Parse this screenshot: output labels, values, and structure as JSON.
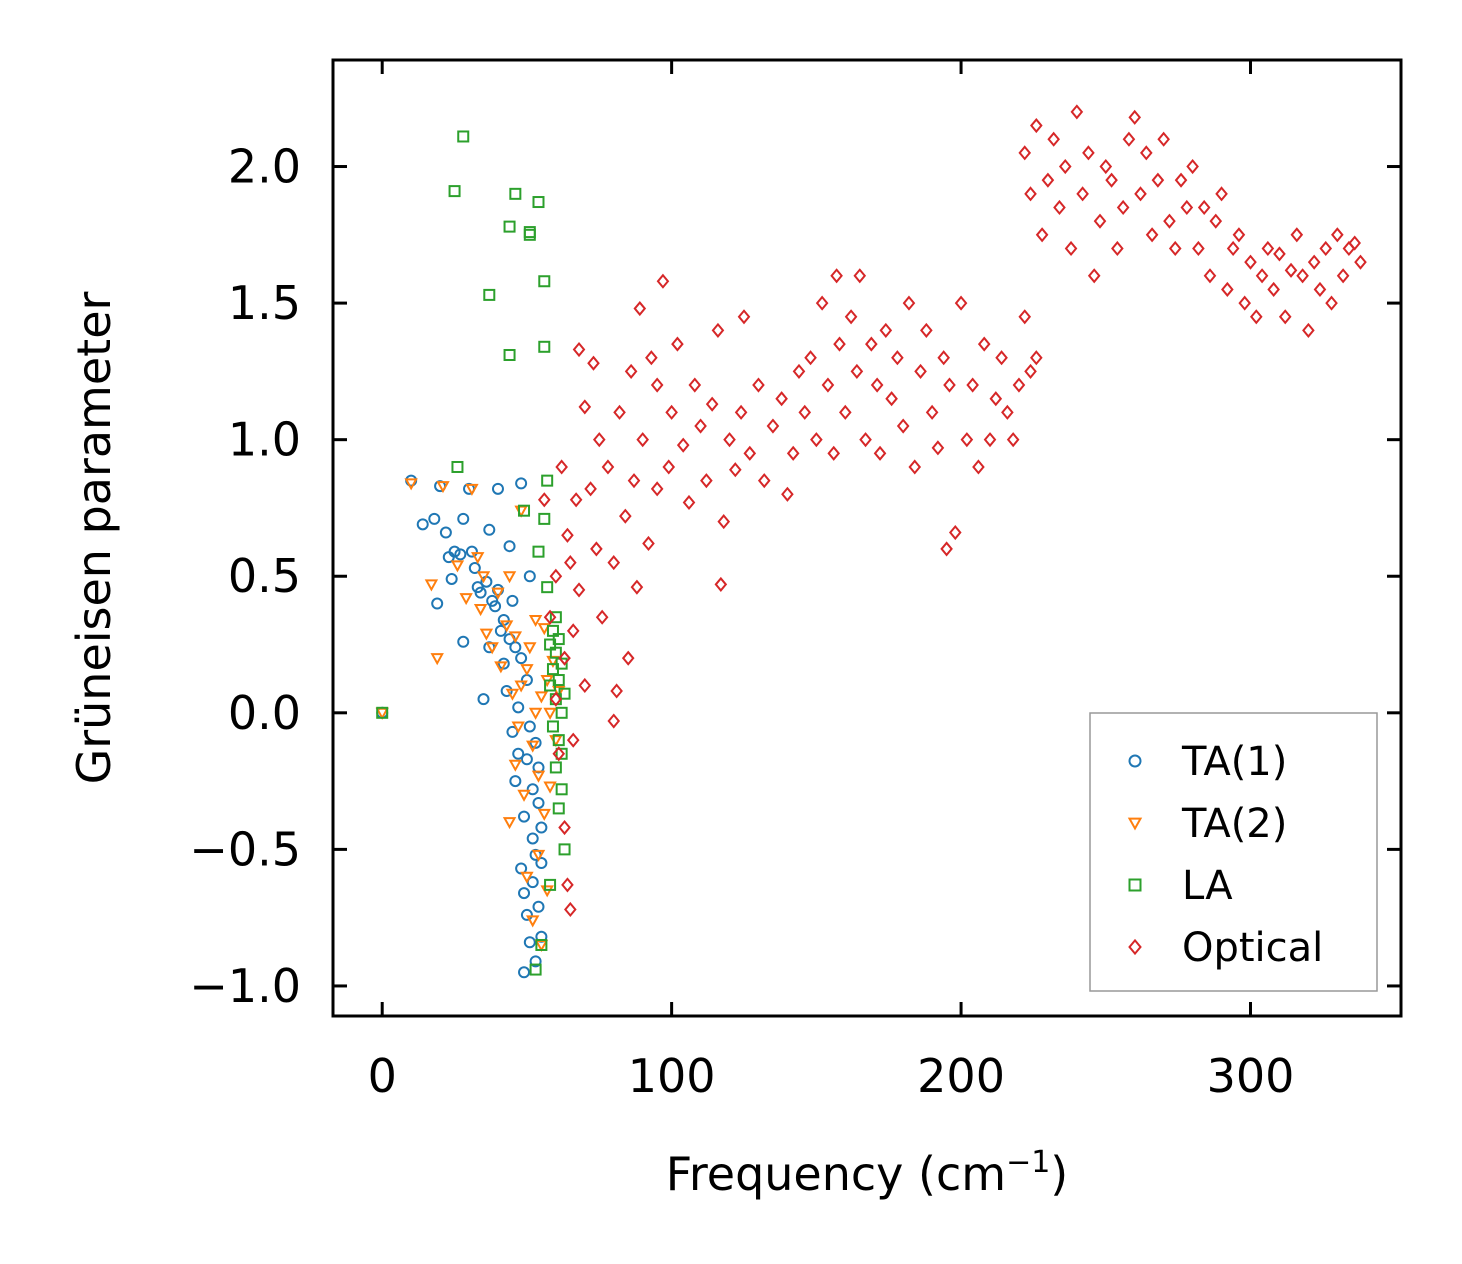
{
  "chart_data": {
    "type": "scatter",
    "title": "",
    "xlabel": "Frequency (cm",
    "xlabel_sup": "−1",
    "xlabel_suffix": ")",
    "ylabel": "Grüneisen parameter",
    "xlim": [
      -17,
      352
    ],
    "ylim": [
      -1.11,
      2.39
    ],
    "xticks": [
      0,
      100,
      200,
      300
    ],
    "yticks": [
      -1.0,
      -0.5,
      0.0,
      0.5,
      1.0,
      1.5,
      2.0
    ],
    "xtick_labels": [
      "0",
      "100",
      "200",
      "300"
    ],
    "ytick_labels": [
      "−1.0",
      "−0.5",
      "0.0",
      "0.5",
      "1.0",
      "1.5",
      "2.0"
    ],
    "grid": false,
    "legend_position": "bottom-right",
    "series": [
      {
        "name": "TA(1)",
        "marker": "circle",
        "color": "#1f77b4",
        "points": [
          [
            0,
            0.0
          ],
          [
            10,
            0.85
          ],
          [
            14,
            0.69
          ],
          [
            18,
            0.71
          ],
          [
            19,
            0.4
          ],
          [
            20,
            0.83
          ],
          [
            22,
            0.66
          ],
          [
            23,
            0.57
          ],
          [
            24,
            0.49
          ],
          [
            25,
            0.59
          ],
          [
            27,
            0.58
          ],
          [
            28,
            0.71
          ],
          [
            28,
            0.26
          ],
          [
            30,
            0.82
          ],
          [
            31,
            0.59
          ],
          [
            32,
            0.53
          ],
          [
            33,
            0.46
          ],
          [
            34,
            0.44
          ],
          [
            35,
            0.05
          ],
          [
            36,
            0.48
          ],
          [
            37,
            0.67
          ],
          [
            37,
            0.24
          ],
          [
            38,
            0.41
          ],
          [
            39,
            0.39
          ],
          [
            40,
            0.82
          ],
          [
            40,
            0.45
          ],
          [
            41,
            0.3
          ],
          [
            42,
            0.34
          ],
          [
            42,
            0.18
          ],
          [
            43,
            0.08
          ],
          [
            44,
            0.61
          ],
          [
            44,
            0.27
          ],
          [
            45,
            0.41
          ],
          [
            45,
            -0.07
          ],
          [
            46,
            0.24
          ],
          [
            46,
            -0.25
          ],
          [
            47,
            -0.15
          ],
          [
            47,
            0.02
          ],
          [
            48,
            0.84
          ],
          [
            48,
            0.2
          ],
          [
            48,
            -0.57
          ],
          [
            49,
            -0.95
          ],
          [
            49,
            -0.66
          ],
          [
            49,
            -0.38
          ],
          [
            50,
            -0.17
          ],
          [
            50,
            -0.74
          ],
          [
            50,
            0.12
          ],
          [
            51,
            -0.84
          ],
          [
            51,
            -0.05
          ],
          [
            51,
            0.5
          ],
          [
            52,
            -0.46
          ],
          [
            52,
            -0.28
          ],
          [
            52,
            -0.62
          ],
          [
            53,
            -0.52
          ],
          [
            53,
            -0.11
          ],
          [
            53,
            -0.91
          ],
          [
            54,
            -0.71
          ],
          [
            54,
            -0.33
          ],
          [
            54,
            -0.2
          ],
          [
            55,
            -0.55
          ],
          [
            55,
            -0.42
          ],
          [
            55,
            -0.82
          ]
        ]
      },
      {
        "name": "TA(2)",
        "marker": "triangle-down",
        "color": "#ff7f0e",
        "points": [
          [
            0,
            0.0
          ],
          [
            10,
            0.84
          ],
          [
            17,
            0.47
          ],
          [
            19,
            0.2
          ],
          [
            21,
            0.83
          ],
          [
            26,
            0.54
          ],
          [
            29,
            0.42
          ],
          [
            31,
            0.82
          ],
          [
            33,
            0.57
          ],
          [
            34,
            0.38
          ],
          [
            35,
            0.5
          ],
          [
            36,
            0.29
          ],
          [
            38,
            0.24
          ],
          [
            40,
            0.44
          ],
          [
            41,
            0.17
          ],
          [
            43,
            0.32
          ],
          [
            44,
            0.5
          ],
          [
            44,
            -0.4
          ],
          [
            45,
            0.07
          ],
          [
            46,
            -0.19
          ],
          [
            46,
            0.28
          ],
          [
            47,
            -0.05
          ],
          [
            48,
            0.74
          ],
          [
            48,
            0.1
          ],
          [
            49,
            -0.3
          ],
          [
            50,
            0.16
          ],
          [
            50,
            -0.6
          ],
          [
            51,
            0.24
          ],
          [
            52,
            -0.76
          ],
          [
            52,
            -0.12
          ],
          [
            53,
            0.34
          ],
          [
            53,
            0.0
          ],
          [
            54,
            -0.52
          ],
          [
            54,
            -0.23
          ],
          [
            55,
            0.06
          ],
          [
            55,
            -0.85
          ],
          [
            56,
            0.31
          ],
          [
            56,
            -0.37
          ],
          [
            57,
            0.12
          ],
          [
            57,
            -0.65
          ],
          [
            58,
            0.0
          ],
          [
            58,
            -0.27
          ],
          [
            59,
            0.19
          ],
          [
            60,
            -0.1
          ],
          [
            61,
            0.08
          ]
        ]
      },
      {
        "name": "LA",
        "marker": "square",
        "color": "#2ca02c",
        "points": [
          [
            0,
            0.0
          ],
          [
            25,
            1.91
          ],
          [
            26,
            0.9
          ],
          [
            28,
            2.11
          ],
          [
            37,
            1.53
          ],
          [
            44,
            1.78
          ],
          [
            44,
            1.31
          ],
          [
            46,
            1.9
          ],
          [
            49,
            0.74
          ],
          [
            51,
            1.76
          ],
          [
            51,
            1.75
          ],
          [
            54,
            1.87
          ],
          [
            54,
            0.59
          ],
          [
            56,
            1.58
          ],
          [
            56,
            1.34
          ],
          [
            56,
            0.71
          ],
          [
            57,
            0.85
          ],
          [
            57,
            0.46
          ],
          [
            58,
            0.25
          ],
          [
            58,
            0.1
          ],
          [
            59,
            -0.05
          ],
          [
            59,
            0.16
          ],
          [
            59,
            0.3
          ],
          [
            60,
            -0.2
          ],
          [
            60,
            0.05
          ],
          [
            60,
            0.22
          ],
          [
            61,
            -0.35
          ],
          [
            61,
            0.12
          ],
          [
            61,
            -0.1
          ],
          [
            62,
            0.0
          ],
          [
            62,
            -0.28
          ],
          [
            62,
            0.18
          ],
          [
            63,
            -0.5
          ],
          [
            63,
            0.07
          ],
          [
            58,
            -0.63
          ],
          [
            55,
            -0.85
          ],
          [
            53,
            -0.94
          ],
          [
            60,
            0.35
          ],
          [
            61,
            0.27
          ],
          [
            62,
            -0.15
          ]
        ]
      },
      {
        "name": "Optical",
        "marker": "diamond",
        "color": "#d62728",
        "points": [
          [
            56,
            0.78
          ],
          [
            58,
            0.35
          ],
          [
            60,
            0.05
          ],
          [
            60,
            0.5
          ],
          [
            61,
            -0.15
          ],
          [
            62,
            0.9
          ],
          [
            63,
            -0.42
          ],
          [
            63,
            0.2
          ],
          [
            64,
            0.65
          ],
          [
            64,
            -0.63
          ],
          [
            65,
            0.55
          ],
          [
            65,
            -0.72
          ],
          [
            66,
            0.3
          ],
          [
            66,
            -0.1
          ],
          [
            67,
            0.78
          ],
          [
            68,
            1.33
          ],
          [
            68,
            0.45
          ],
          [
            70,
            1.12
          ],
          [
            70,
            0.1
          ],
          [
            72,
            0.82
          ],
          [
            73,
            1.28
          ],
          [
            74,
            0.6
          ],
          [
            75,
            1.0
          ],
          [
            76,
            0.35
          ],
          [
            78,
            0.9
          ],
          [
            80,
            -0.03
          ],
          [
            80,
            0.55
          ],
          [
            81,
            0.08
          ],
          [
            82,
            1.1
          ],
          [
            84,
            0.72
          ],
          [
            85,
            0.2
          ],
          [
            86,
            1.25
          ],
          [
            87,
            0.85
          ],
          [
            88,
            0.46
          ],
          [
            89,
            1.48
          ],
          [
            90,
            1.0
          ],
          [
            92,
            0.62
          ],
          [
            93,
            1.3
          ],
          [
            95,
            1.2
          ],
          [
            95,
            0.82
          ],
          [
            97,
            1.58
          ],
          [
            99,
            0.9
          ],
          [
            100,
            1.1
          ],
          [
            102,
            1.35
          ],
          [
            104,
            0.98
          ],
          [
            106,
            0.77
          ],
          [
            108,
            1.2
          ],
          [
            110,
            1.05
          ],
          [
            112,
            0.85
          ],
          [
            114,
            1.13
          ],
          [
            116,
            1.4
          ],
          [
            117,
            0.47
          ],
          [
            118,
            0.7
          ],
          [
            120,
            1.0
          ],
          [
            122,
            0.89
          ],
          [
            124,
            1.1
          ],
          [
            125,
            1.45
          ],
          [
            127,
            0.95
          ],
          [
            130,
            1.2
          ],
          [
            132,
            0.85
          ],
          [
            135,
            1.05
          ],
          [
            138,
            1.15
          ],
          [
            140,
            0.8
          ],
          [
            142,
            0.95
          ],
          [
            144,
            1.25
          ],
          [
            146,
            1.1
          ],
          [
            148,
            1.3
          ],
          [
            150,
            1.0
          ],
          [
            152,
            1.5
          ],
          [
            154,
            1.2
          ],
          [
            156,
            0.95
          ],
          [
            157,
            1.6
          ],
          [
            158,
            1.35
          ],
          [
            160,
            1.1
          ],
          [
            162,
            1.45
          ],
          [
            164,
            1.25
          ],
          [
            165,
            1.6
          ],
          [
            167,
            1.0
          ],
          [
            169,
            1.35
          ],
          [
            171,
            1.2
          ],
          [
            172,
            0.95
          ],
          [
            174,
            1.4
          ],
          [
            176,
            1.15
          ],
          [
            178,
            1.3
          ],
          [
            180,
            1.05
          ],
          [
            182,
            1.5
          ],
          [
            184,
            0.9
          ],
          [
            186,
            1.25
          ],
          [
            188,
            1.4
          ],
          [
            190,
            1.1
          ],
          [
            192,
            0.97
          ],
          [
            194,
            1.3
          ],
          [
            195,
            0.6
          ],
          [
            196,
            1.2
          ],
          [
            198,
            0.66
          ],
          [
            200,
            1.5
          ],
          [
            202,
            1.0
          ],
          [
            204,
            1.2
          ],
          [
            206,
            0.9
          ],
          [
            208,
            1.35
          ],
          [
            210,
            1.0
          ],
          [
            212,
            1.15
          ],
          [
            214,
            1.3
          ],
          [
            216,
            1.1
          ],
          [
            218,
            1.0
          ],
          [
            220,
            1.2
          ],
          [
            222,
            1.45
          ],
          [
            224,
            1.25
          ],
          [
            226,
            1.3
          ],
          [
            222,
            2.05
          ],
          [
            224,
            1.9
          ],
          [
            226,
            2.15
          ],
          [
            228,
            1.75
          ],
          [
            230,
            1.95
          ],
          [
            232,
            2.1
          ],
          [
            234,
            1.85
          ],
          [
            236,
            2.0
          ],
          [
            238,
            1.7
          ],
          [
            240,
            2.2
          ],
          [
            242,
            1.9
          ],
          [
            244,
            2.05
          ],
          [
            246,
            1.6
          ],
          [
            248,
            1.8
          ],
          [
            250,
            2.0
          ],
          [
            252,
            1.95
          ],
          [
            254,
            1.7
          ],
          [
            256,
            1.85
          ],
          [
            258,
            2.1
          ],
          [
            260,
            2.18
          ],
          [
            262,
            1.9
          ],
          [
            264,
            2.05
          ],
          [
            266,
            1.75
          ],
          [
            268,
            1.95
          ],
          [
            270,
            2.1
          ],
          [
            272,
            1.8
          ],
          [
            274,
            1.7
          ],
          [
            276,
            1.95
          ],
          [
            278,
            1.85
          ],
          [
            280,
            2.0
          ],
          [
            282,
            1.7
          ],
          [
            284,
            1.85
          ],
          [
            286,
            1.6
          ],
          [
            288,
            1.8
          ],
          [
            290,
            1.9
          ],
          [
            292,
            1.55
          ],
          [
            294,
            1.7
          ],
          [
            296,
            1.75
          ],
          [
            298,
            1.5
          ],
          [
            300,
            1.65
          ],
          [
            302,
            1.45
          ],
          [
            304,
            1.6
          ],
          [
            306,
            1.7
          ],
          [
            308,
            1.55
          ],
          [
            310,
            1.68
          ],
          [
            312,
            1.45
          ],
          [
            314,
            1.62
          ],
          [
            316,
            1.75
          ],
          [
            318,
            1.6
          ],
          [
            320,
            1.4
          ],
          [
            322,
            1.65
          ],
          [
            324,
            1.55
          ],
          [
            326,
            1.7
          ],
          [
            328,
            1.5
          ],
          [
            330,
            1.75
          ],
          [
            332,
            1.6
          ],
          [
            334,
            1.7
          ],
          [
            336,
            1.72
          ],
          [
            338,
            1.65
          ]
        ]
      }
    ]
  }
}
